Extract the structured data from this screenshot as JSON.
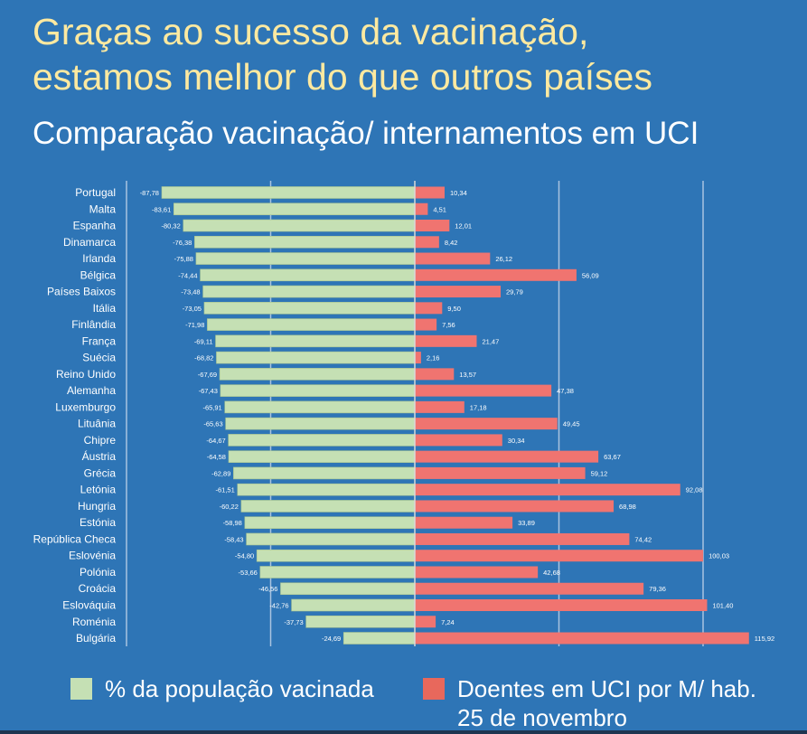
{
  "header": {
    "title_line1": "Graças ao sucesso da vacinação,",
    "title_line2": "estamos melhor do que outros países",
    "subtitle": "Comparação vacinação/ internamentos em UCI"
  },
  "colors": {
    "background": "#2e75b6",
    "vaccinated": "#c5e0b4",
    "icu": "#f07470",
    "title": "#fde9a0"
  },
  "legend": {
    "vaccinated_label": "% da população vacinada",
    "icu_label_line1": "Doentes em UCI por M/ hab.",
    "icu_label_line2": "25 de novembro",
    "position": "bottom"
  },
  "chart_data": {
    "type": "bar",
    "orientation": "horizontal-diverging",
    "xlim": [
      -100,
      120
    ],
    "grid": true,
    "categories": [
      "Portugal",
      "Malta",
      "Espanha",
      "Dinamarca",
      "Irlanda",
      "Bélgica",
      "Países Baixos",
      "Itália",
      "Finlândia",
      "França",
      "Suécia",
      "Reino Unido",
      "Alemanha",
      "Luxemburgo",
      "Lituânia",
      "Chipre",
      "Áustria",
      "Grécia",
      "Letónia",
      "Hungria",
      "Estónia",
      "República Checa",
      "Eslovénia",
      "Polónia",
      "Croácia",
      "Eslováquia",
      "Roménia",
      "Bulgária"
    ],
    "series": [
      {
        "name": "% da população vacinada",
        "values": [
          -87.78,
          -83.61,
          -80.32,
          -76.38,
          -75.88,
          -74.44,
          -73.48,
          -73.05,
          -71.98,
          -69.11,
          -68.82,
          -67.69,
          -67.43,
          -65.91,
          -65.63,
          -64.67,
          -64.58,
          -62.89,
          -61.51,
          -60.22,
          -58.98,
          -58.43,
          -54.8,
          -53.66,
          -46.56,
          -42.76,
          -37.73,
          -24.69
        ]
      },
      {
        "name": "Doentes em UCI por M/ hab.",
        "values": [
          10.34,
          4.51,
          12.01,
          8.42,
          26.12,
          56.09,
          29.79,
          9.5,
          7.56,
          21.47,
          2.16,
          13.57,
          47.38,
          17.18,
          49.45,
          30.34,
          63.67,
          59.12,
          92.08,
          68.98,
          33.89,
          74.42,
          100.03,
          42.68,
          79.36,
          101.4,
          7.24,
          115.92
        ]
      }
    ]
  }
}
